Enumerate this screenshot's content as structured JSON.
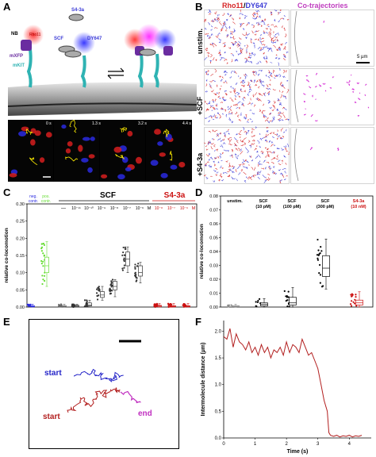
{
  "figure": {
    "panel_letters": [
      "A",
      "B",
      "C",
      "D",
      "E",
      "F"
    ]
  },
  "panelA": {
    "labels": {
      "nb": "NB",
      "mxfp": "mXFP",
      "mkit": "mKIT",
      "s43a": "S4-3a",
      "scf": "SCF",
      "dy647": "DY647",
      "rho11": "Rho11"
    },
    "timestamps": [
      "0 s",
      "1.3 s",
      "3.2 s",
      "4.4 s"
    ]
  },
  "panelB": {
    "header_left": "Rho11/DY647",
    "header_left_a": "Rho11",
    "header_left_sep": "/",
    "header_left_b": "DY647",
    "header_right": "Co-trajectories",
    "rows": [
      "unstim.",
      "+SCF",
      "+S4-3a"
    ],
    "scalebar": "5 µm",
    "colors": {
      "red": "#d62728",
      "blue": "#3a3ad6",
      "magenta": "#d633d6"
    }
  },
  "panelC": {
    "ylabel": "relative co-locomotion",
    "group_scf": "SCF",
    "group_s43a": "S4-3a",
    "neg_label": "neg. contr.",
    "pos_label": "pos. contr.",
    "dash": "—",
    "unit_m": "M",
    "conc_scf": [
      "10⁻¹¹",
      "10⁻¹⁰",
      "10⁻⁹",
      "10⁻⁸",
      "10⁻⁷",
      "10⁻⁶"
    ],
    "conc_s43a": [
      "10⁻⁸",
      "10⁻⁷",
      "10⁻⁶"
    ],
    "yticks": [
      "0.00",
      "0.05",
      "0.10",
      "0.15",
      "0.20",
      "0.25",
      "0.30"
    ]
  },
  "panelD": {
    "ylabel": "relative co-locomotion",
    "categories": [
      "unstim.",
      "SCF (10 pM)",
      "SCF (100 pM)",
      "SCF (300 pM)",
      "S4-3a (10 nM)"
    ],
    "cat_lines": [
      [
        "unstim."
      ],
      [
        "SCF",
        "(10 pM)"
      ],
      [
        "SCF",
        "(100 pM)"
      ],
      [
        "SCF",
        "(300 pM)"
      ],
      [
        "S4-3a",
        "(10 nM)"
      ]
    ],
    "yticks": [
      "0.00",
      "0.01",
      "0.02",
      "0.03",
      "0.04",
      "0.05",
      "0.06",
      "0.07",
      "0.08"
    ]
  },
  "panelE": {
    "start_blue": "start",
    "start_red": "start",
    "end": "end"
  },
  "chart_data": [
    {
      "type": "scatter",
      "panel": "C",
      "ylabel": "relative co-locomotion",
      "ylim": [
        0,
        0.3
      ],
      "categories": [
        "neg. contr.",
        "pos. contr.",
        "—",
        "10⁻¹¹ M SCF",
        "10⁻¹⁰ M SCF",
        "10⁻⁹ M SCF",
        "10⁻⁸ M SCF",
        "10⁻⁷ M SCF",
        "10⁻⁶ M SCF",
        "10⁻⁸ M S4-3a",
        "10⁻⁷ M S4-3a",
        "10⁻⁶ M S4-3a"
      ],
      "medians": [
        0.002,
        0.12,
        0.002,
        0.003,
        0.006,
        0.035,
        0.06,
        0.14,
        0.1,
        0.003,
        0.002,
        0.002
      ],
      "q1": [
        0.001,
        0.1,
        0.001,
        0.001,
        0.003,
        0.028,
        0.05,
        0.12,
        0.09,
        0.001,
        0.001,
        0.001
      ],
      "q3": [
        0.004,
        0.145,
        0.004,
        0.005,
        0.012,
        0.045,
        0.075,
        0.16,
        0.12,
        0.005,
        0.004,
        0.004
      ],
      "whisker_low": [
        0.0,
        0.06,
        0.0,
        0.0,
        0.0,
        0.02,
        0.03,
        0.1,
        0.07,
        0.0,
        0.0,
        0.0
      ],
      "whisker_high": [
        0.008,
        0.19,
        0.008,
        0.008,
        0.02,
        0.06,
        0.08,
        0.175,
        0.13,
        0.01,
        0.01,
        0.01
      ]
    },
    {
      "type": "scatter",
      "panel": "D",
      "ylabel": "relative co-locomotion",
      "ylim": [
        0,
        0.08
      ],
      "categories": [
        "unstim.",
        "SCF (10 pM)",
        "SCF (100 pM)",
        "SCF (300 pM)",
        "S4-3a (10 nM)"
      ],
      "medians": [
        0.0005,
        0.002,
        0.003,
        0.028,
        0.003
      ],
      "q1": [
        0.0002,
        0.0008,
        0.0015,
        0.022,
        0.0015
      ],
      "q3": [
        0.001,
        0.003,
        0.007,
        0.037,
        0.005
      ],
      "whisker_low": [
        0.0,
        0.0,
        0.0,
        0.013,
        0.0
      ],
      "whisker_high": [
        0.002,
        0.006,
        0.014,
        0.049,
        0.011
      ]
    },
    {
      "type": "line",
      "panel": "F",
      "ylabel": "Intermolecule distance (µm)",
      "xlabel": "Time (s)",
      "xlim": [
        0,
        4.7
      ],
      "ylim": [
        0,
        2.2
      ],
      "xticks": [
        0,
        1,
        2,
        3,
        4
      ],
      "yticks": [
        0.0,
        0.5,
        1.0,
        1.5,
        2.0
      ],
      "ytick_labels": [
        "0.0",
        "0.5",
        "1.0",
        "1.5",
        "2.0"
      ],
      "xtick_labels": [
        "0",
        "1",
        "2",
        "3",
        "4"
      ],
      "x": [
        0.0,
        0.1,
        0.2,
        0.3,
        0.4,
        0.5,
        0.6,
        0.7,
        0.8,
        0.9,
        1.0,
        1.1,
        1.2,
        1.3,
        1.4,
        1.5,
        1.6,
        1.7,
        1.8,
        1.9,
        2.0,
        2.1,
        2.2,
        2.3,
        2.4,
        2.5,
        2.6,
        2.7,
        2.8,
        2.9,
        3.0,
        3.1,
        3.2,
        3.3,
        3.35,
        3.4,
        3.5,
        3.6,
        3.7,
        3.8,
        3.9,
        4.0,
        4.1,
        4.2,
        4.3,
        4.4
      ],
      "y": [
        1.9,
        1.85,
        2.05,
        1.7,
        1.95,
        1.8,
        1.75,
        1.65,
        1.8,
        1.6,
        1.7,
        1.55,
        1.75,
        1.6,
        1.7,
        1.5,
        1.65,
        1.6,
        1.7,
        1.55,
        1.8,
        1.6,
        1.75,
        1.7,
        1.6,
        1.85,
        1.7,
        1.55,
        1.6,
        1.45,
        1.3,
        1.0,
        0.7,
        0.5,
        0.1,
        0.05,
        0.03,
        0.05,
        0.02,
        0.04,
        0.03,
        0.05,
        0.02,
        0.04,
        0.03,
        0.05
      ]
    }
  ]
}
